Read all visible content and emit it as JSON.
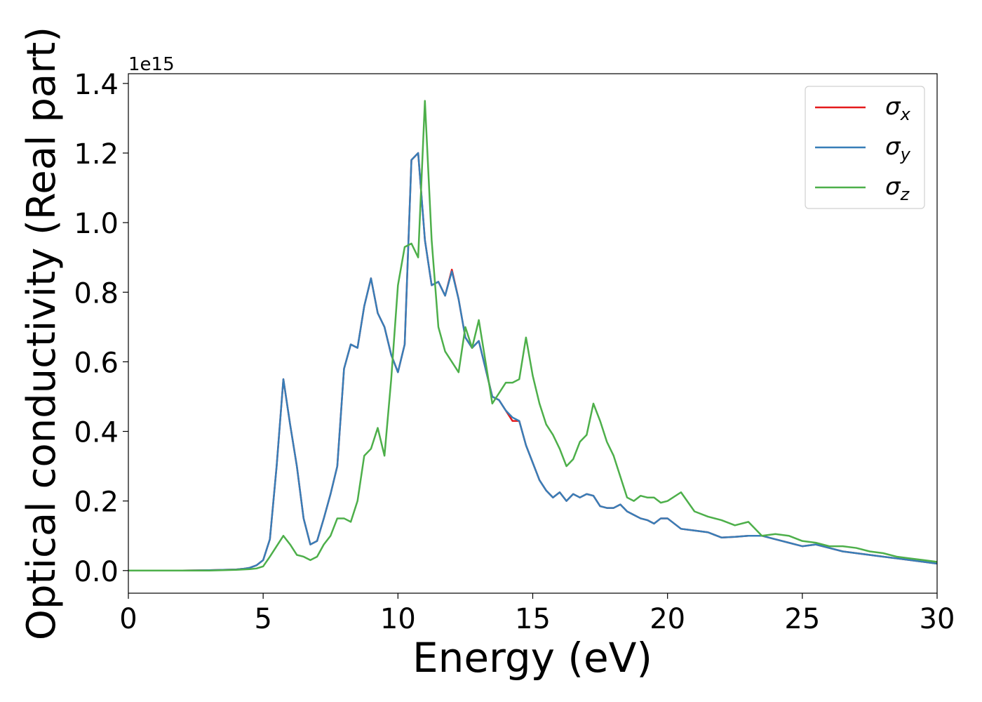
{
  "chart_data": {
    "type": "line",
    "xlabel": "Energy (eV)",
    "ylabel": "Optical conductivity (Real part)",
    "y_offset_label": "1e15",
    "x": [
      0,
      1,
      2,
      3,
      4,
      4.25,
      4.5,
      4.75,
      5,
      5.25,
      5.5,
      5.75,
      6,
      6.25,
      6.5,
      6.75,
      7,
      7.25,
      7.5,
      7.75,
      8,
      8.25,
      8.5,
      8.75,
      9,
      9.25,
      9.5,
      9.75,
      10,
      10.25,
      10.5,
      10.75,
      11,
      11.25,
      11.5,
      11.75,
      12,
      12.25,
      12.5,
      12.75,
      13,
      13.25,
      13.5,
      13.75,
      14,
      14.25,
      14.5,
      14.75,
      15,
      15.25,
      15.5,
      15.75,
      16,
      16.25,
      16.5,
      16.75,
      17,
      17.25,
      17.5,
      17.75,
      18,
      18.25,
      18.5,
      18.75,
      19,
      19.25,
      19.5,
      19.75,
      20,
      20.5,
      21,
      21.5,
      22,
      22.5,
      23,
      23.5,
      24,
      24.5,
      25,
      25.5,
      26,
      26.5,
      27,
      27.5,
      28,
      28.5,
      29,
      29.5,
      30
    ],
    "series": [
      {
        "name": "σx",
        "color": "#e41a1c",
        "values": [
          0,
          0,
          0,
          0.001,
          0.003,
          0.005,
          0.008,
          0.015,
          0.03,
          0.09,
          0.3,
          0.55,
          0.42,
          0.3,
          0.15,
          0.075,
          0.085,
          0.15,
          0.22,
          0.3,
          0.58,
          0.65,
          0.64,
          0.76,
          0.84,
          0.74,
          0.7,
          0.62,
          0.57,
          0.65,
          1.18,
          1.2,
          0.95,
          0.82,
          0.83,
          0.79,
          0.865,
          0.78,
          0.67,
          0.64,
          0.66,
          0.58,
          0.5,
          0.49,
          0.46,
          0.43,
          0.43,
          0.36,
          0.31,
          0.26,
          0.23,
          0.21,
          0.225,
          0.2,
          0.22,
          0.21,
          0.22,
          0.215,
          0.185,
          0.18,
          0.18,
          0.19,
          0.17,
          0.16,
          0.15,
          0.145,
          0.135,
          0.15,
          0.15,
          0.12,
          0.115,
          0.11,
          0.095,
          0.097,
          0.1,
          0.1,
          0.09,
          0.08,
          0.07,
          0.075,
          0.065,
          0.055,
          0.05,
          0.045,
          0.04,
          0.035,
          0.03,
          0.025,
          0.02
        ]
      },
      {
        "name": "σy",
        "color": "#377eb8",
        "values": [
          0,
          0,
          0,
          0.001,
          0.003,
          0.005,
          0.008,
          0.015,
          0.03,
          0.09,
          0.3,
          0.55,
          0.42,
          0.3,
          0.15,
          0.075,
          0.085,
          0.15,
          0.22,
          0.3,
          0.58,
          0.65,
          0.64,
          0.76,
          0.84,
          0.74,
          0.7,
          0.62,
          0.57,
          0.65,
          1.18,
          1.2,
          0.95,
          0.82,
          0.83,
          0.79,
          0.86,
          0.78,
          0.67,
          0.64,
          0.66,
          0.58,
          0.5,
          0.49,
          0.46,
          0.44,
          0.43,
          0.36,
          0.31,
          0.26,
          0.23,
          0.21,
          0.225,
          0.2,
          0.22,
          0.21,
          0.22,
          0.215,
          0.185,
          0.18,
          0.18,
          0.19,
          0.17,
          0.16,
          0.15,
          0.145,
          0.135,
          0.15,
          0.15,
          0.12,
          0.115,
          0.11,
          0.095,
          0.097,
          0.1,
          0.1,
          0.09,
          0.08,
          0.07,
          0.075,
          0.065,
          0.055,
          0.05,
          0.045,
          0.04,
          0.035,
          0.03,
          0.025,
          0.02
        ]
      },
      {
        "name": "σz",
        "color": "#4daf4a",
        "values": [
          0,
          0,
          0,
          0,
          0.002,
          0.003,
          0.004,
          0.006,
          0.012,
          0.04,
          0.07,
          0.1,
          0.075,
          0.045,
          0.04,
          0.03,
          0.04,
          0.075,
          0.1,
          0.15,
          0.15,
          0.14,
          0.2,
          0.33,
          0.35,
          0.41,
          0.33,
          0.55,
          0.82,
          0.93,
          0.94,
          0.9,
          1.35,
          0.95,
          0.7,
          0.63,
          0.6,
          0.57,
          0.7,
          0.64,
          0.72,
          0.6,
          0.48,
          0.51,
          0.54,
          0.54,
          0.55,
          0.67,
          0.56,
          0.48,
          0.42,
          0.39,
          0.35,
          0.3,
          0.32,
          0.37,
          0.39,
          0.48,
          0.43,
          0.37,
          0.33,
          0.27,
          0.21,
          0.2,
          0.215,
          0.21,
          0.21,
          0.195,
          0.2,
          0.225,
          0.17,
          0.155,
          0.145,
          0.13,
          0.14,
          0.1,
          0.105,
          0.1,
          0.085,
          0.08,
          0.07,
          0.07,
          0.065,
          0.055,
          0.05,
          0.04,
          0.035,
          0.03,
          0.025
        ]
      }
    ],
    "xlim": [
      0,
      30
    ],
    "xticks": [
      0,
      5,
      10,
      15,
      20,
      25,
      30
    ],
    "ylim": [
      -0.065,
      1.428
    ],
    "yticks": [
      {
        "value": 0,
        "label": "0.0"
      },
      0.2,
      0.4,
      0.6,
      0.8,
      {
        "value": 1,
        "label": "1.0"
      },
      1.2,
      1.4
    ],
    "legend": "upper right"
  }
}
